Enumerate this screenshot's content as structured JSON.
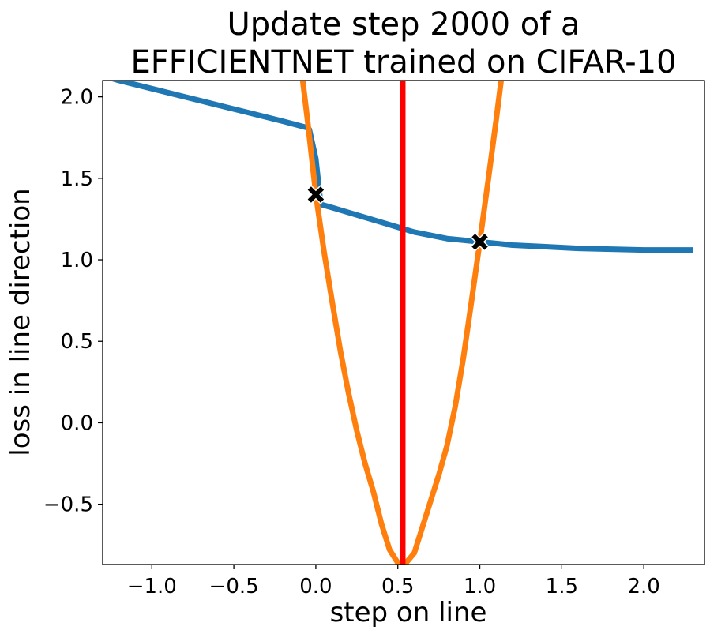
{
  "chart_data": {
    "type": "line",
    "title_lines": [
      "Update step 2000 of a",
      "EFFICIENTNET trained on CIFAR-10"
    ],
    "xlabel": "step on line",
    "ylabel": "loss in line direction",
    "xlim": [
      -1.3,
      2.37
    ],
    "ylim": [
      -0.87,
      2.1
    ],
    "xticks": [
      -1.0,
      -0.5,
      0.0,
      0.5,
      1.0,
      1.5,
      2.0
    ],
    "xtick_labels": [
      "−1.0",
      "−0.5",
      "0.0",
      "0.5",
      "1.0",
      "1.5",
      "2.0"
    ],
    "yticks": [
      -0.5,
      0.0,
      0.5,
      1.0,
      1.5,
      2.0
    ],
    "ytick_labels": [
      "−0.5",
      "0.0",
      "0.5",
      "1.0",
      "1.5",
      "2.0"
    ],
    "grid": false,
    "series": [
      {
        "color": "#1f77b4",
        "points": [
          [
            -1.3,
            2.13
          ],
          [
            -1.2,
            2.1
          ],
          [
            -1.0,
            2.05
          ],
          [
            -0.8,
            2.0
          ],
          [
            -0.6,
            1.95
          ],
          [
            -0.4,
            1.9
          ],
          [
            -0.2,
            1.85
          ],
          [
            -0.05,
            1.81
          ],
          [
            -0.04,
            1.8
          ],
          [
            0.0,
            1.62
          ],
          [
            0.03,
            1.34
          ],
          [
            0.1,
            1.32
          ],
          [
            0.2,
            1.29
          ],
          [
            0.3,
            1.26
          ],
          [
            0.4,
            1.23
          ],
          [
            0.5,
            1.2
          ],
          [
            0.6,
            1.17
          ],
          [
            0.7,
            1.15
          ],
          [
            0.8,
            1.13
          ],
          [
            0.9,
            1.12
          ],
          [
            1.0,
            1.11
          ],
          [
            1.1,
            1.1
          ],
          [
            1.2,
            1.09
          ],
          [
            1.4,
            1.08
          ],
          [
            1.6,
            1.07
          ],
          [
            1.8,
            1.065
          ],
          [
            2.0,
            1.06
          ],
          [
            2.2,
            1.06
          ],
          [
            2.3,
            1.06
          ]
        ]
      },
      {
        "color": "#ff7f0e",
        "points": [
          [
            -0.08,
            2.1
          ],
          [
            -0.05,
            1.85
          ],
          [
            0.0,
            1.4
          ],
          [
            0.05,
            1.05
          ],
          [
            0.1,
            0.74
          ],
          [
            0.15,
            0.44
          ],
          [
            0.2,
            0.18
          ],
          [
            0.25,
            -0.05
          ],
          [
            0.3,
            -0.25
          ],
          [
            0.35,
            -0.42
          ],
          [
            0.4,
            -0.62
          ],
          [
            0.45,
            -0.78
          ],
          [
            0.5,
            -0.86
          ],
          [
            0.55,
            -0.86
          ],
          [
            0.6,
            -0.8
          ],
          [
            0.65,
            -0.64
          ],
          [
            0.7,
            -0.48
          ],
          [
            0.75,
            -0.32
          ],
          [
            0.8,
            -0.14
          ],
          [
            0.85,
            0.1
          ],
          [
            0.9,
            0.4
          ],
          [
            0.95,
            0.75
          ],
          [
            1.0,
            1.11
          ],
          [
            1.05,
            1.48
          ],
          [
            1.1,
            1.86
          ],
          [
            1.13,
            2.1
          ]
        ]
      }
    ],
    "vline": {
      "x": 0.53,
      "color": "#ff0000"
    },
    "markers": [
      {
        "x": 0.0,
        "y": 1.4,
        "symbol": "X",
        "color": "#000000"
      },
      {
        "x": 1.0,
        "y": 1.11,
        "symbol": "X",
        "color": "#000000"
      }
    ]
  }
}
